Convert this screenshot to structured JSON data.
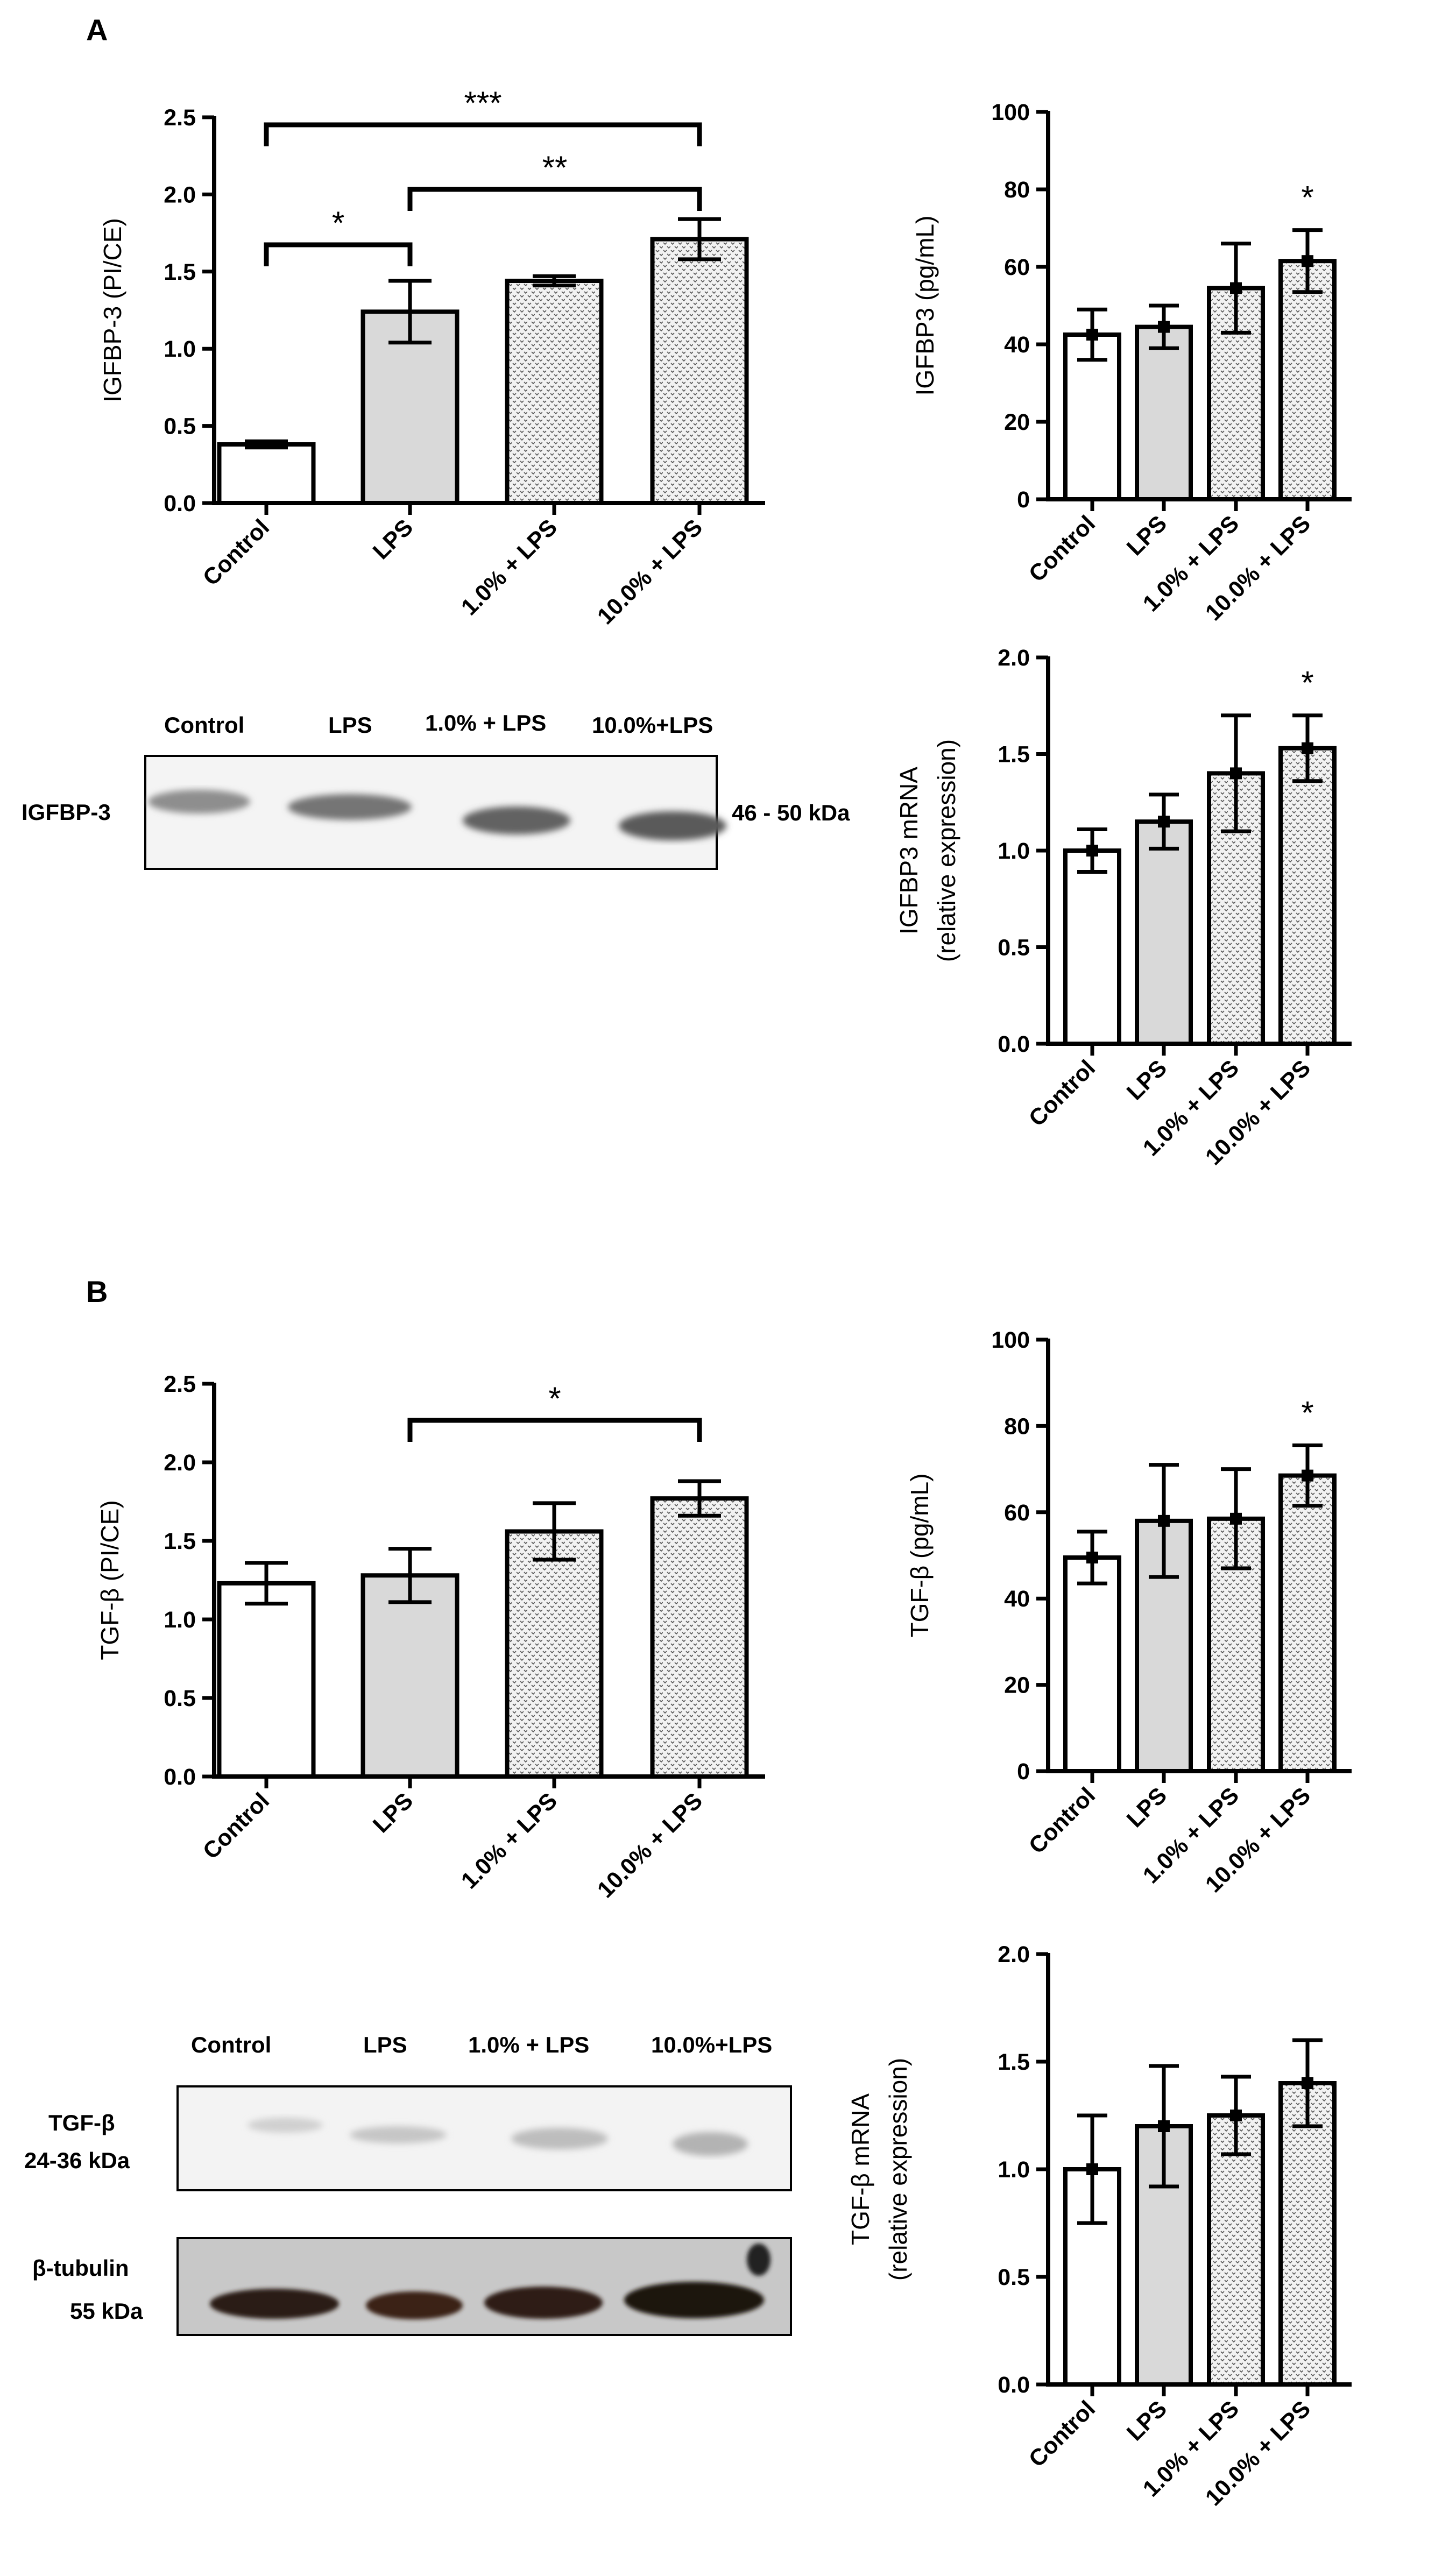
{
  "panels": {
    "A": "A",
    "B": "B"
  },
  "colors": {
    "control_fill": "#ffffff",
    "lps_fill": "#d9d9d9",
    "dotted_fill": "#eeeeee",
    "axis": "#000000",
    "band_dark": "#3a2418",
    "band_light": "#8a8a8a",
    "blot_background": "#f2f2f2"
  },
  "blots": {
    "igfbp3": {
      "lanes": [
        "Control",
        "LPS",
        "1.0% + LPS",
        "10.0%+LPS"
      ],
      "row_label": "IGFBP-3",
      "size_label": "46 - 50 kDa"
    },
    "tgfb": {
      "lanes": [
        "Control",
        "LPS",
        "1.0% + LPS",
        "10.0%+LPS"
      ],
      "row1_label_line1": "TGF-β",
      "row1_label_line2": "24-36 kDa",
      "row2_label_line1": "β-tubulin",
      "row2_label_line2": "55 kDa"
    }
  },
  "chart_data": [
    {
      "id": "A1",
      "type": "bar",
      "categories": [
        "Control",
        "LPS",
        "1.0% + LPS",
        "10.0% + LPS"
      ],
      "values": [
        0.38,
        1.24,
        1.44,
        1.71
      ],
      "errors": [
        0.02,
        0.2,
        0.03,
        0.13
      ],
      "ylabel": "IGFBP-3 (PI/CE)",
      "ylim": [
        0,
        2.5
      ],
      "yticks": [
        "0.0",
        "0.5",
        "1.0",
        "1.5",
        "2.0",
        "2.5"
      ],
      "brackets": [
        {
          "from": 0,
          "to": 3,
          "label": "***"
        },
        {
          "from": 1,
          "to": 3,
          "label": "**"
        },
        {
          "from": 0,
          "to": 1,
          "label": "*"
        }
      ],
      "stars": []
    },
    {
      "id": "A2",
      "type": "bar",
      "categories": [
        "Control",
        "LPS",
        "1.0% + LPS",
        "10.0% + LPS"
      ],
      "values": [
        42.5,
        44.5,
        54.5,
        61.5
      ],
      "errors": [
        6.5,
        5.5,
        11.5,
        8.0
      ],
      "ylabel": "IGFBP3 (pg/mL)",
      "ylim": [
        0,
        100
      ],
      "yticks": [
        "0",
        "20",
        "40",
        "60",
        "80",
        "100"
      ],
      "brackets": [],
      "stars": [
        {
          "index": 3,
          "label": "*"
        }
      ]
    },
    {
      "id": "A3",
      "type": "bar",
      "categories": [
        "Control",
        "LPS",
        "1.0% + LPS",
        "10.0% + LPS"
      ],
      "values": [
        1.0,
        1.15,
        1.4,
        1.53
      ],
      "errors": [
        0.11,
        0.14,
        0.3,
        0.17
      ],
      "ylabel": "IGFBP3 mRNA",
      "ylabel2": "(relative expression)",
      "ylim": [
        0,
        2.0
      ],
      "yticks": [
        "0.0",
        "0.5",
        "1.0",
        "1.5",
        "2.0"
      ],
      "brackets": [],
      "stars": [
        {
          "index": 3,
          "label": "*"
        }
      ]
    },
    {
      "id": "B1",
      "type": "bar",
      "categories": [
        "Control",
        "LPS",
        "1.0% + LPS",
        "10.0% + LPS"
      ],
      "values": [
        1.23,
        1.28,
        1.56,
        1.77
      ],
      "errors": [
        0.13,
        0.17,
        0.18,
        0.11
      ],
      "ylabel": "TGF-β (PI/CE)",
      "ylim": [
        0,
        2.5
      ],
      "yticks": [
        "0.0",
        "0.5",
        "1.0",
        "1.5",
        "2.0",
        "2.5"
      ],
      "brackets": [
        {
          "from": 1,
          "to": 3,
          "label": "*"
        }
      ],
      "stars": []
    },
    {
      "id": "B2",
      "type": "bar",
      "categories": [
        "Control",
        "LPS",
        "1.0% + LPS",
        "10.0% + LPS"
      ],
      "values": [
        49.5,
        58.0,
        58.5,
        68.5
      ],
      "errors": [
        6.0,
        13.0,
        11.5,
        7.0
      ],
      "ylabel": "TGF-β (pg/mL)",
      "ylim": [
        0,
        100
      ],
      "yticks": [
        "0",
        "20",
        "40",
        "60",
        "80",
        "100"
      ],
      "brackets": [],
      "stars": [
        {
          "index": 3,
          "label": "*"
        }
      ]
    },
    {
      "id": "B3",
      "type": "bar",
      "categories": [
        "Control",
        "LPS",
        "1.0% + LPS",
        "10.0% + LPS"
      ],
      "values": [
        1.0,
        1.2,
        1.25,
        1.4
      ],
      "errors": [
        0.25,
        0.28,
        0.18,
        0.2
      ],
      "ylabel": "TGF-β mRNA",
      "ylabel2": "(relative expression)",
      "ylim": [
        0,
        2.0
      ],
      "yticks": [
        "0.0",
        "0.5",
        "1.0",
        "1.5",
        "2.0"
      ],
      "brackets": [],
      "stars": []
    }
  ]
}
